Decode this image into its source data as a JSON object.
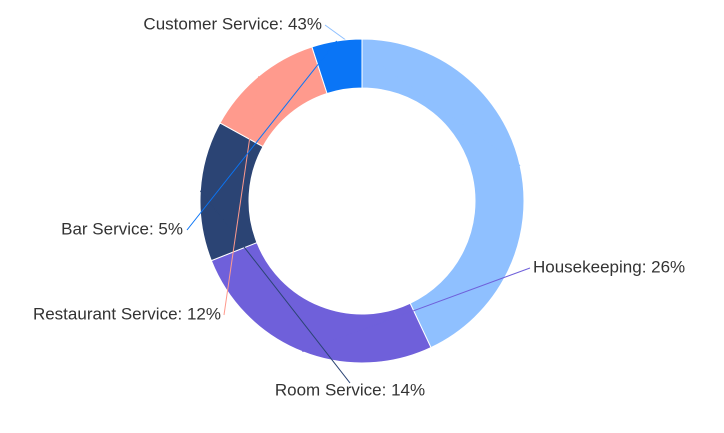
{
  "chart_data": {
    "type": "pie",
    "style": "donut",
    "title": "",
    "legend": "none",
    "slices": [
      {
        "label": "Customer Service",
        "value": 43,
        "color": "#8fc0ff",
        "display": "Customer Service: 43%"
      },
      {
        "label": "Housekeeping",
        "value": 26,
        "color": "#6f60da",
        "display": "Housekeeping: 26%"
      },
      {
        "label": "Room Service",
        "value": 14,
        "color": "#2b4474",
        "display": "Room Service: 14%"
      },
      {
        "label": "Restaurant Service",
        "value": 12,
        "color": "#ff9a8d",
        "display": "Restaurant Service: 12%"
      },
      {
        "label": "Bar Service",
        "value": 5,
        "color": "#0a75f6",
        "display": "Bar Service: 5%"
      }
    ]
  }
}
